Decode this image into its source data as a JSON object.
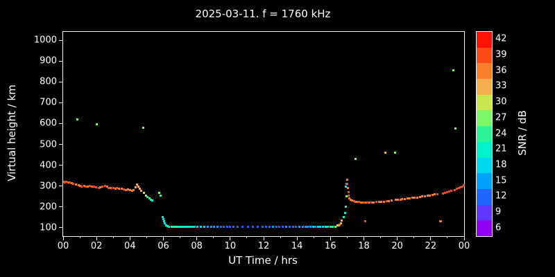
{
  "chart_data": {
    "type": "scatter",
    "title": "2025-03-11. f = 1760 kHz",
    "xlabel": "UT Time / hrs",
    "ylabel": "Virtual height / km",
    "xlim": [
      0,
      24
    ],
    "ylim": [
      60,
      1040
    ],
    "x_tick_labels": [
      "00",
      "02",
      "04",
      "06",
      "08",
      "10",
      "12",
      "14",
      "16",
      "18",
      "20",
      "22",
      "00"
    ],
    "y_ticks": [
      100,
      200,
      300,
      400,
      500,
      600,
      700,
      800,
      900,
      1000
    ],
    "grid": false,
    "background": "#000000",
    "colorbar": {
      "label": "SNR / dB",
      "ticks": [
        6,
        9,
        12,
        15,
        18,
        21,
        24,
        27,
        30,
        33,
        36,
        39,
        42
      ],
      "min": 4.5,
      "max": 43.5,
      "band_colors": [
        "#9000f0",
        "#6038ff",
        "#1e66ff",
        "#00a2ff",
        "#00d8f0",
        "#00f2c8",
        "#2cf596",
        "#7bf768",
        "#c8e84e",
        "#f7b04e",
        "#fb7f2a",
        "#fc4a16",
        "#fd1205"
      ]
    },
    "points_format": [
      "ut_hour",
      "virtual_height_km",
      "snr_db"
    ],
    "points": [
      [
        0.05,
        322,
        39
      ],
      [
        0.12,
        318,
        40
      ],
      [
        0.2,
        320,
        38
      ],
      [
        0.3,
        316,
        37
      ],
      [
        0.4,
        318,
        39
      ],
      [
        0.5,
        313,
        36
      ],
      [
        0.62,
        310,
        38
      ],
      [
        0.75,
        308,
        37
      ],
      [
        0.85,
        620,
        27
      ],
      [
        0.92,
        304,
        36
      ],
      [
        1.02,
        300,
        37
      ],
      [
        1.12,
        298,
        38
      ],
      [
        1.25,
        300,
        36
      ],
      [
        1.35,
        296,
        39
      ],
      [
        1.48,
        297,
        37
      ],
      [
        1.6,
        300,
        38
      ],
      [
        1.72,
        296,
        36
      ],
      [
        1.85,
        298,
        40
      ],
      [
        1.98,
        295,
        38
      ],
      [
        2.02,
        595,
        27
      ],
      [
        2.12,
        292,
        39
      ],
      [
        2.22,
        294,
        37
      ],
      [
        2.35,
        297,
        38
      ],
      [
        2.5,
        300,
        39
      ],
      [
        2.62,
        296,
        37
      ],
      [
        2.72,
        292,
        38
      ],
      [
        2.85,
        290,
        36
      ],
      [
        3.0,
        292,
        38
      ],
      [
        3.12,
        288,
        37
      ],
      [
        3.22,
        290,
        39
      ],
      [
        3.35,
        286,
        36
      ],
      [
        3.5,
        288,
        37
      ],
      [
        3.62,
        285,
        38
      ],
      [
        3.75,
        282,
        36
      ],
      [
        3.9,
        285,
        37
      ],
      [
        4.02,
        280,
        36
      ],
      [
        4.12,
        278,
        35
      ],
      [
        4.22,
        282,
        36
      ],
      [
        4.32,
        294,
        34
      ],
      [
        4.42,
        308,
        33
      ],
      [
        4.5,
        298,
        34
      ],
      [
        4.58,
        286,
        33
      ],
      [
        4.68,
        278,
        32
      ],
      [
        4.78,
        580,
        27
      ],
      [
        4.85,
        266,
        30
      ],
      [
        4.95,
        255,
        27
      ],
      [
        5.05,
        247,
        25
      ],
      [
        5.15,
        240,
        24
      ],
      [
        5.25,
        234,
        23
      ],
      [
        5.35,
        230,
        22
      ],
      [
        5.75,
        268,
        26
      ],
      [
        5.85,
        256,
        24
      ],
      [
        5.95,
        152,
        20
      ],
      [
        6.0,
        142,
        19
      ],
      [
        6.05,
        132,
        20
      ],
      [
        6.1,
        122,
        19
      ],
      [
        6.18,
        113,
        20
      ],
      [
        6.25,
        108,
        21
      ],
      [
        6.35,
        105,
        22
      ],
      [
        6.5,
        104,
        23
      ],
      [
        6.62,
        105,
        22
      ],
      [
        6.75,
        104,
        24
      ],
      [
        6.88,
        105,
        23
      ],
      [
        7.0,
        104,
        22
      ],
      [
        7.12,
        105,
        21
      ],
      [
        7.25,
        104,
        22
      ],
      [
        7.38,
        105,
        20
      ],
      [
        7.5,
        104,
        21
      ],
      [
        7.62,
        105,
        22
      ],
      [
        7.75,
        104,
        20
      ],
      [
        7.88,
        105,
        19
      ],
      [
        8.05,
        104,
        18
      ],
      [
        8.25,
        105,
        19
      ],
      [
        8.45,
        104,
        17
      ],
      [
        8.65,
        105,
        16
      ],
      [
        8.85,
        104,
        15
      ],
      [
        9.05,
        105,
        15
      ],
      [
        9.25,
        104,
        14
      ],
      [
        9.45,
        105,
        13
      ],
      [
        9.62,
        104,
        12
      ],
      [
        9.8,
        105,
        12
      ],
      [
        10.0,
        104,
        13
      ],
      [
        10.2,
        105,
        12
      ],
      [
        10.45,
        104,
        11
      ],
      [
        10.75,
        105,
        12
      ],
      [
        11.05,
        104,
        13
      ],
      [
        11.35,
        105,
        12
      ],
      [
        11.65,
        104,
        13
      ],
      [
        11.95,
        105,
        12
      ],
      [
        12.15,
        104,
        13
      ],
      [
        12.35,
        105,
        12
      ],
      [
        12.55,
        104,
        14
      ],
      [
        12.75,
        105,
        13
      ],
      [
        12.95,
        104,
        12
      ],
      [
        13.15,
        105,
        13
      ],
      [
        13.35,
        104,
        14
      ],
      [
        13.55,
        105,
        13
      ],
      [
        13.75,
        104,
        12
      ],
      [
        13.95,
        105,
        13
      ],
      [
        14.15,
        104,
        14
      ],
      [
        14.35,
        105,
        15
      ],
      [
        14.5,
        104,
        14
      ],
      [
        14.65,
        105,
        15
      ],
      [
        14.8,
        104,
        16
      ],
      [
        14.95,
        105,
        17
      ],
      [
        15.1,
        104,
        16
      ],
      [
        15.25,
        105,
        17
      ],
      [
        15.4,
        104,
        18
      ],
      [
        15.55,
        105,
        19
      ],
      [
        15.7,
        104,
        20
      ],
      [
        15.85,
        105,
        21
      ],
      [
        16.0,
        104,
        22
      ],
      [
        16.15,
        105,
        24
      ],
      [
        16.3,
        106,
        27
      ],
      [
        16.42,
        110,
        30
      ],
      [
        16.5,
        112,
        33
      ],
      [
        16.55,
        116,
        36
      ],
      [
        16.62,
        121,
        33
      ],
      [
        16.68,
        135,
        34
      ],
      [
        16.8,
        152,
        21
      ],
      [
        16.87,
        172,
        22
      ],
      [
        16.92,
        200,
        24
      ],
      [
        16.9,
        298,
        20
      ],
      [
        16.96,
        312,
        19
      ],
      [
        16.97,
        252,
        27
      ],
      [
        17.0,
        330,
        36
      ],
      [
        17.02,
        312,
        38
      ],
      [
        17.05,
        292,
        37
      ],
      [
        17.07,
        272,
        39
      ],
      [
        17.1,
        256,
        38
      ],
      [
        17.13,
        242,
        36
      ],
      [
        17.2,
        236,
        36
      ],
      [
        17.3,
        231,
        37
      ],
      [
        17.4,
        228,
        38
      ],
      [
        17.5,
        430,
        27
      ],
      [
        17.52,
        226,
        36
      ],
      [
        17.62,
        225,
        37
      ],
      [
        17.72,
        224,
        38
      ],
      [
        17.82,
        222,
        37
      ],
      [
        17.92,
        222,
        36
      ],
      [
        18.02,
        221,
        38
      ],
      [
        18.08,
        130,
        40
      ],
      [
        18.12,
        221,
        37
      ],
      [
        18.22,
        220,
        38
      ],
      [
        18.35,
        221,
        37
      ],
      [
        18.48,
        221,
        36
      ],
      [
        18.6,
        222,
        37
      ],
      [
        18.75,
        223,
        38
      ],
      [
        18.9,
        224,
        37
      ],
      [
        19.05,
        225,
        36
      ],
      [
        19.2,
        226,
        37
      ],
      [
        19.3,
        460,
        33
      ],
      [
        19.35,
        227,
        38
      ],
      [
        19.5,
        229,
        37
      ],
      [
        19.65,
        231,
        36
      ],
      [
        19.85,
        460,
        27
      ],
      [
        19.92,
        233,
        37
      ],
      [
        20.05,
        234,
        36
      ],
      [
        20.18,
        235,
        37
      ],
      [
        20.3,
        237,
        36
      ],
      [
        20.45,
        238,
        37
      ],
      [
        20.6,
        240,
        36
      ],
      [
        20.75,
        241,
        35
      ],
      [
        20.9,
        243,
        36
      ],
      [
        21.05,
        245,
        37
      ],
      [
        21.2,
        246,
        36
      ],
      [
        21.35,
        248,
        35
      ],
      [
        21.5,
        250,
        36
      ],
      [
        21.65,
        252,
        37
      ],
      [
        21.8,
        254,
        36
      ],
      [
        21.95,
        256,
        37
      ],
      [
        22.1,
        258,
        36
      ],
      [
        22.25,
        260,
        37
      ],
      [
        22.4,
        262,
        38
      ],
      [
        22.55,
        130,
        38
      ],
      [
        22.62,
        131,
        37
      ],
      [
        22.72,
        265,
        38
      ],
      [
        22.85,
        268,
        39
      ],
      [
        23.0,
        271,
        38
      ],
      [
        23.12,
        274,
        39
      ],
      [
        23.25,
        278,
        40
      ],
      [
        23.35,
        855,
        27
      ],
      [
        23.42,
        282,
        39
      ],
      [
        23.5,
        575,
        26
      ],
      [
        23.58,
        286,
        38
      ],
      [
        23.68,
        290,
        39
      ],
      [
        23.78,
        294,
        40
      ],
      [
        23.88,
        299,
        39
      ],
      [
        23.96,
        304,
        38
      ]
    ]
  }
}
